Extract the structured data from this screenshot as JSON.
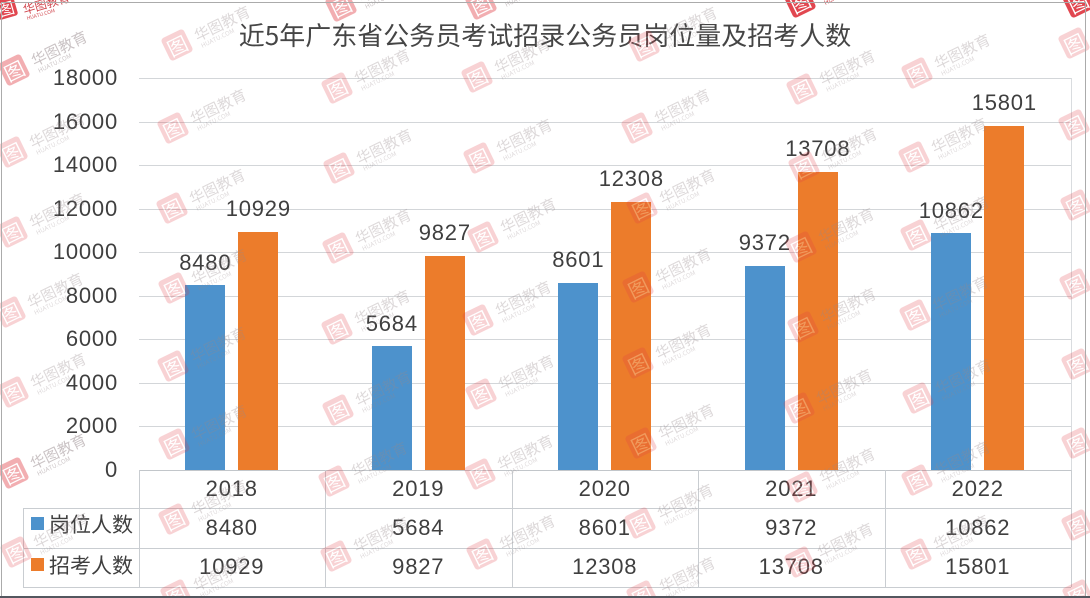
{
  "chart_data": {
    "type": "bar",
    "title": "近5年广东省公务员考试招录公务员岗位量及招考人数",
    "categories": [
      "2018",
      "2019",
      "2020",
      "2021",
      "2022"
    ],
    "series": [
      {
        "name": "岗位人数",
        "color": "#4D92CC",
        "values": [
          8480,
          5684,
          8601,
          9372,
          10862
        ]
      },
      {
        "name": "招考人数",
        "color": "#EC7C2B",
        "values": [
          10929,
          9827,
          12308,
          13708,
          15801
        ]
      }
    ],
    "ylim": [
      0,
      18000
    ],
    "ytick_step": 2000,
    "yticklabels": [
      "18000",
      "16000",
      "14000",
      "12000",
      "10000",
      "8000",
      "6000",
      "4000",
      "2000",
      "0"
    ],
    "grid": true,
    "legend_position": "bottom-table-left",
    "value_labels": "outside-end"
  },
  "data_table": {
    "row_headers": [
      "岗位人数",
      "招考人数"
    ],
    "header_row": [
      "2018",
      "2019",
      "2020",
      "2021",
      "2022"
    ],
    "rows": [
      [
        "8480",
        "5684",
        "8601",
        "9372",
        "10862"
      ],
      [
        "10929",
        "9827",
        "12308",
        "13708",
        "15801"
      ]
    ]
  },
  "watermark": {
    "brand_text": "华图教育",
    "domain_text": "HUATU.COM",
    "logo_color": "#E03E47",
    "text_color": "#96888B"
  },
  "colors": {
    "bar_blue": "#4D92CC",
    "bar_orange": "#EC7C2B",
    "text": "#3F3F3F",
    "title": "#4A4A4A",
    "gridline": "#D9DCDF",
    "table_line": "#C9CDD1"
  }
}
